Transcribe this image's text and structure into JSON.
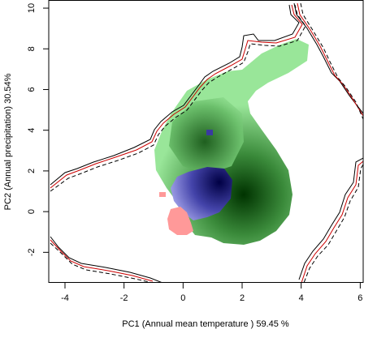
{
  "chart_data": {
    "type": "scatter",
    "title": "",
    "xlabel": "PC1 (Annual mean temperature ) 59.45 %",
    "ylabel": "PC2 (Annual precipitation) 30.54%",
    "xlim": [
      -4.55,
      6.1
    ],
    "ylim": [
      -3.5,
      10.4
    ],
    "xticks": [
      "-4",
      "-2",
      "0",
      "2",
      "4",
      "6"
    ],
    "yticks": [
      "-2",
      "0",
      "2",
      "4",
      "6",
      "8",
      "10"
    ],
    "grid": false,
    "legend": "none",
    "colors": {
      "niche_green_light": "#99e699",
      "niche_green_dark": "#003300",
      "niche_blue_light": "#9999e6",
      "niche_blue_dark": "#000044",
      "niche_pink": "#ff9999",
      "contour_solid": "#000000",
      "contour_red": "#cc0000",
      "contour_dashed": "#000000"
    },
    "series": [
      {
        "density_peaks": [
          {
            "x": 2.0,
            "y": 0.8
          },
          {
            "x": 0.7,
            "y": 3.2
          }
        ]
      },
      {
        "density_peaks": [
          {
            "x": 1.4,
            "y": 1.1
          }
        ]
      },
      {
        "density_peaks": [
          {
            "x": -0.1,
            "y": -0.3
          }
        ]
      }
    ],
    "contours": [
      {
        "style": "solid",
        "color": "#000000"
      },
      {
        "style": "solid",
        "color": "#cc0000"
      },
      {
        "style": "dashed",
        "color": "#000000"
      }
    ]
  }
}
